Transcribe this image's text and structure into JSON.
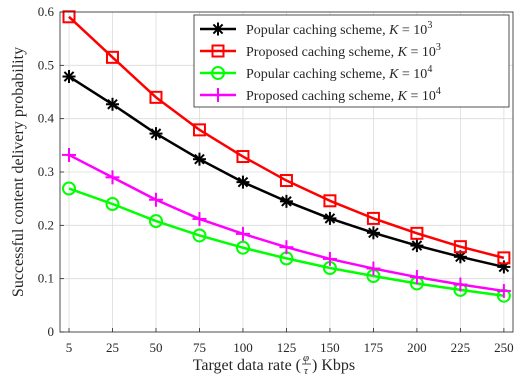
{
  "chart_data": {
    "type": "line",
    "title": "",
    "xlabel": "Target data rate (φ/τ) Kbps",
    "xlabel_parts": {
      "before": "Target data rate (",
      "num": "φ",
      "den": "τ",
      "after": ") Kbps"
    },
    "ylabel": "Successful content delivery probability",
    "categories": [
      "5",
      "25",
      "50",
      "75",
      "100",
      "125",
      "150",
      "175",
      "200",
      "225",
      "250"
    ],
    "x": [
      5,
      25,
      50,
      75,
      100,
      125,
      150,
      175,
      200,
      225,
      250
    ],
    "ylim": [
      0,
      0.6
    ],
    "yticks": [
      "0",
      "0.1",
      "0.2",
      "0.3",
      "0.4",
      "0.5",
      "0.6"
    ],
    "grid": true,
    "legend_position": "top-right",
    "series": [
      {
        "name": "Popular caching scheme, K = 10^3",
        "label_text": "Popular caching scheme, ",
        "k_exp": "3",
        "color": "#000000",
        "marker": "asterisk",
        "values": [
          0.479,
          0.427,
          0.372,
          0.324,
          0.281,
          0.245,
          0.213,
          0.186,
          0.162,
          0.141,
          0.122
        ]
      },
      {
        "name": "Proposed caching scheme, K = 10^3",
        "label_text": "Proposed caching scheme, ",
        "k_exp": "3",
        "color": "#ff0000",
        "marker": "square",
        "values": [
          0.591,
          0.515,
          0.44,
          0.379,
          0.329,
          0.284,
          0.246,
          0.213,
          0.185,
          0.16,
          0.139
        ]
      },
      {
        "name": "Popular caching scheme, K = 10^4",
        "label_text": "Popular caching scheme, ",
        "k_exp": "4",
        "color": "#00ff00",
        "marker": "circle",
        "values": [
          0.269,
          0.24,
          0.208,
          0.181,
          0.158,
          0.138,
          0.12,
          0.105,
          0.091,
          0.079,
          0.068
        ]
      },
      {
        "name": "Proposed caching scheme, K = 10^4",
        "label_text": "Proposed caching scheme, ",
        "k_exp": "4",
        "color": "#ff00ff",
        "marker": "plus",
        "values": [
          0.332,
          0.29,
          0.248,
          0.212,
          0.184,
          0.159,
          0.137,
          0.119,
          0.103,
          0.089,
          0.077
        ]
      }
    ]
  }
}
